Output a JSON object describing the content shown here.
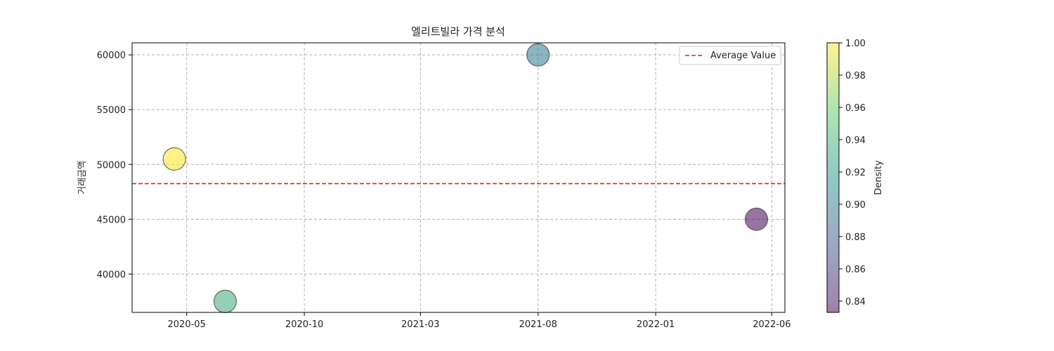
{
  "chart_data": {
    "type": "scatter",
    "title": "엘리트빌라 가격 분석",
    "xlabel": "",
    "ylabel": "거래금액",
    "x_ticks": [
      "2020-05",
      "2020-10",
      "2021-03",
      "2021-08",
      "2022-01",
      "2022-06"
    ],
    "y_ticks": [
      40000,
      45000,
      50000,
      55000,
      60000
    ],
    "xlim": [
      "2020-02-20",
      "2022-06-18"
    ],
    "ylim": [
      36500,
      61100
    ],
    "grid": true,
    "points": [
      {
        "x": "2020-04-15",
        "y": 50500,
        "density": 1.0
      },
      {
        "x": "2020-06-20",
        "y": 37500,
        "density": 0.935
      },
      {
        "x": "2021-08-01",
        "y": 60000,
        "density": 0.9
      },
      {
        "x": "2022-05-12",
        "y": 45000,
        "density": 0.833
      }
    ],
    "average_line": {
      "label": "Average Value",
      "value": 48250,
      "color": "#e02020",
      "style": "dashed"
    },
    "legend_position": "top-right",
    "colorbar": {
      "label": "Density",
      "colormap": "viridis",
      "range": [
        0.833,
        1.0
      ],
      "ticks": [
        "0.84",
        "0.86",
        "0.88",
        "0.90",
        "0.92",
        "0.94",
        "0.96",
        "0.98",
        "1.00"
      ]
    }
  }
}
